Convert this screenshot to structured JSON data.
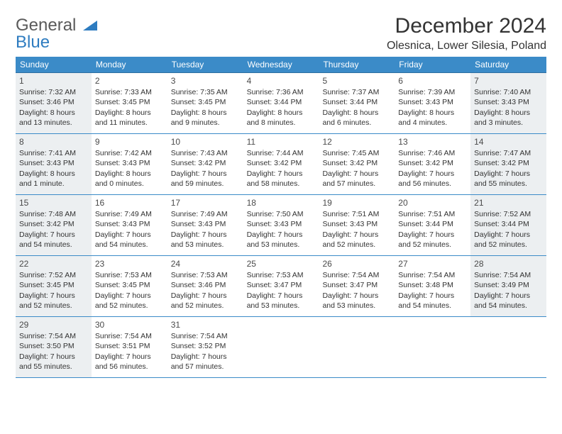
{
  "header": {
    "logo_general": "General",
    "logo_blue": "Blue",
    "month_title": "December 2024",
    "location": "Olesnica, Lower Silesia, Poland"
  },
  "style": {
    "header_bg": "#3b8bc8",
    "header_text": "#ffffff",
    "row_border": "#3b8bc8",
    "shaded_bg": "#eceff1",
    "body_text": "#333333",
    "background": "#ffffff",
    "logo_gray": "#5a5a5a",
    "logo_blue": "#2e7cc0",
    "month_fontsize": 30,
    "location_fontsize": 16,
    "dow_fontsize": 12,
    "cell_fontsize": 10.5
  },
  "days_of_week": [
    "Sunday",
    "Monday",
    "Tuesday",
    "Wednesday",
    "Thursday",
    "Friday",
    "Saturday"
  ],
  "weeks": [
    [
      {
        "num": "1",
        "shaded": true,
        "sunrise": "Sunrise: 7:32 AM",
        "sunset": "Sunset: 3:46 PM",
        "daylight1": "Daylight: 8 hours",
        "daylight2": "and 13 minutes."
      },
      {
        "num": "2",
        "sunrise": "Sunrise: 7:33 AM",
        "sunset": "Sunset: 3:45 PM",
        "daylight1": "Daylight: 8 hours",
        "daylight2": "and 11 minutes."
      },
      {
        "num": "3",
        "sunrise": "Sunrise: 7:35 AM",
        "sunset": "Sunset: 3:45 PM",
        "daylight1": "Daylight: 8 hours",
        "daylight2": "and 9 minutes."
      },
      {
        "num": "4",
        "sunrise": "Sunrise: 7:36 AM",
        "sunset": "Sunset: 3:44 PM",
        "daylight1": "Daylight: 8 hours",
        "daylight2": "and 8 minutes."
      },
      {
        "num": "5",
        "sunrise": "Sunrise: 7:37 AM",
        "sunset": "Sunset: 3:44 PM",
        "daylight1": "Daylight: 8 hours",
        "daylight2": "and 6 minutes."
      },
      {
        "num": "6",
        "sunrise": "Sunrise: 7:39 AM",
        "sunset": "Sunset: 3:43 PM",
        "daylight1": "Daylight: 8 hours",
        "daylight2": "and 4 minutes."
      },
      {
        "num": "7",
        "shaded": true,
        "sunrise": "Sunrise: 7:40 AM",
        "sunset": "Sunset: 3:43 PM",
        "daylight1": "Daylight: 8 hours",
        "daylight2": "and 3 minutes."
      }
    ],
    [
      {
        "num": "8",
        "shaded": true,
        "sunrise": "Sunrise: 7:41 AM",
        "sunset": "Sunset: 3:43 PM",
        "daylight1": "Daylight: 8 hours",
        "daylight2": "and 1 minute."
      },
      {
        "num": "9",
        "sunrise": "Sunrise: 7:42 AM",
        "sunset": "Sunset: 3:43 PM",
        "daylight1": "Daylight: 8 hours",
        "daylight2": "and 0 minutes."
      },
      {
        "num": "10",
        "sunrise": "Sunrise: 7:43 AM",
        "sunset": "Sunset: 3:42 PM",
        "daylight1": "Daylight: 7 hours",
        "daylight2": "and 59 minutes."
      },
      {
        "num": "11",
        "sunrise": "Sunrise: 7:44 AM",
        "sunset": "Sunset: 3:42 PM",
        "daylight1": "Daylight: 7 hours",
        "daylight2": "and 58 minutes."
      },
      {
        "num": "12",
        "sunrise": "Sunrise: 7:45 AM",
        "sunset": "Sunset: 3:42 PM",
        "daylight1": "Daylight: 7 hours",
        "daylight2": "and 57 minutes."
      },
      {
        "num": "13",
        "sunrise": "Sunrise: 7:46 AM",
        "sunset": "Sunset: 3:42 PM",
        "daylight1": "Daylight: 7 hours",
        "daylight2": "and 56 minutes."
      },
      {
        "num": "14",
        "shaded": true,
        "sunrise": "Sunrise: 7:47 AM",
        "sunset": "Sunset: 3:42 PM",
        "daylight1": "Daylight: 7 hours",
        "daylight2": "and 55 minutes."
      }
    ],
    [
      {
        "num": "15",
        "shaded": true,
        "sunrise": "Sunrise: 7:48 AM",
        "sunset": "Sunset: 3:42 PM",
        "daylight1": "Daylight: 7 hours",
        "daylight2": "and 54 minutes."
      },
      {
        "num": "16",
        "sunrise": "Sunrise: 7:49 AM",
        "sunset": "Sunset: 3:43 PM",
        "daylight1": "Daylight: 7 hours",
        "daylight2": "and 54 minutes."
      },
      {
        "num": "17",
        "sunrise": "Sunrise: 7:49 AM",
        "sunset": "Sunset: 3:43 PM",
        "daylight1": "Daylight: 7 hours",
        "daylight2": "and 53 minutes."
      },
      {
        "num": "18",
        "sunrise": "Sunrise: 7:50 AM",
        "sunset": "Sunset: 3:43 PM",
        "daylight1": "Daylight: 7 hours",
        "daylight2": "and 53 minutes."
      },
      {
        "num": "19",
        "sunrise": "Sunrise: 7:51 AM",
        "sunset": "Sunset: 3:43 PM",
        "daylight1": "Daylight: 7 hours",
        "daylight2": "and 52 minutes."
      },
      {
        "num": "20",
        "sunrise": "Sunrise: 7:51 AM",
        "sunset": "Sunset: 3:44 PM",
        "daylight1": "Daylight: 7 hours",
        "daylight2": "and 52 minutes."
      },
      {
        "num": "21",
        "shaded": true,
        "sunrise": "Sunrise: 7:52 AM",
        "sunset": "Sunset: 3:44 PM",
        "daylight1": "Daylight: 7 hours",
        "daylight2": "and 52 minutes."
      }
    ],
    [
      {
        "num": "22",
        "shaded": true,
        "sunrise": "Sunrise: 7:52 AM",
        "sunset": "Sunset: 3:45 PM",
        "daylight1": "Daylight: 7 hours",
        "daylight2": "and 52 minutes."
      },
      {
        "num": "23",
        "sunrise": "Sunrise: 7:53 AM",
        "sunset": "Sunset: 3:45 PM",
        "daylight1": "Daylight: 7 hours",
        "daylight2": "and 52 minutes."
      },
      {
        "num": "24",
        "sunrise": "Sunrise: 7:53 AM",
        "sunset": "Sunset: 3:46 PM",
        "daylight1": "Daylight: 7 hours",
        "daylight2": "and 52 minutes."
      },
      {
        "num": "25",
        "sunrise": "Sunrise: 7:53 AM",
        "sunset": "Sunset: 3:47 PM",
        "daylight1": "Daylight: 7 hours",
        "daylight2": "and 53 minutes."
      },
      {
        "num": "26",
        "sunrise": "Sunrise: 7:54 AM",
        "sunset": "Sunset: 3:47 PM",
        "daylight1": "Daylight: 7 hours",
        "daylight2": "and 53 minutes."
      },
      {
        "num": "27",
        "sunrise": "Sunrise: 7:54 AM",
        "sunset": "Sunset: 3:48 PM",
        "daylight1": "Daylight: 7 hours",
        "daylight2": "and 54 minutes."
      },
      {
        "num": "28",
        "shaded": true,
        "sunrise": "Sunrise: 7:54 AM",
        "sunset": "Sunset: 3:49 PM",
        "daylight1": "Daylight: 7 hours",
        "daylight2": "and 54 minutes."
      }
    ],
    [
      {
        "num": "29",
        "shaded": true,
        "sunrise": "Sunrise: 7:54 AM",
        "sunset": "Sunset: 3:50 PM",
        "daylight1": "Daylight: 7 hours",
        "daylight2": "and 55 minutes."
      },
      {
        "num": "30",
        "sunrise": "Sunrise: 7:54 AM",
        "sunset": "Sunset: 3:51 PM",
        "daylight1": "Daylight: 7 hours",
        "daylight2": "and 56 minutes."
      },
      {
        "num": "31",
        "sunrise": "Sunrise: 7:54 AM",
        "sunset": "Sunset: 3:52 PM",
        "daylight1": "Daylight: 7 hours",
        "daylight2": "and 57 minutes."
      },
      {
        "empty": true
      },
      {
        "empty": true
      },
      {
        "empty": true
      },
      {
        "empty": true
      }
    ]
  ]
}
